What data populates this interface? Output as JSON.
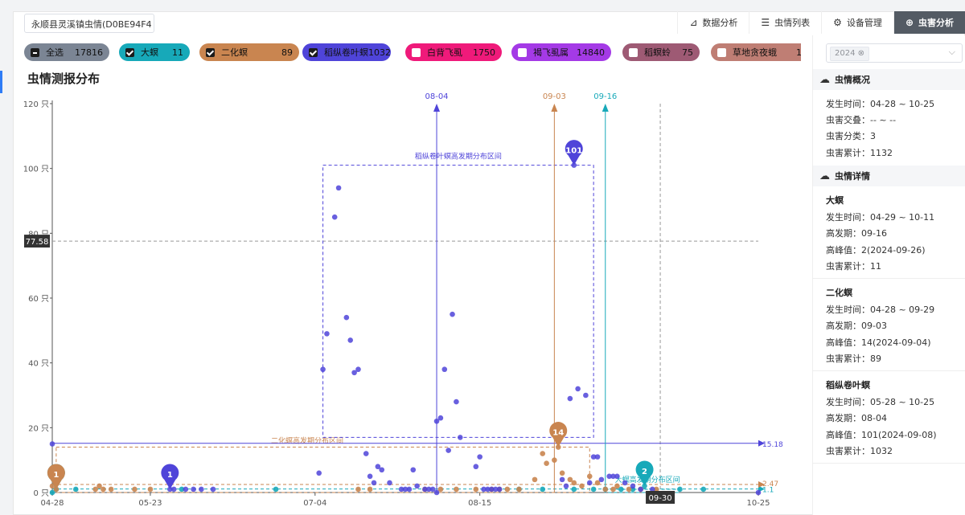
{
  "header": {
    "station": "永顺县灵溪镇虫情(D0BE94F4",
    "tabs": [
      {
        "label": "数据分析",
        "icon": "bar-chart-icon",
        "glyph": "⊿"
      },
      {
        "label": "虫情列表",
        "icon": "list-icon",
        "glyph": "☰"
      },
      {
        "label": "设备管理",
        "icon": "gear-icon",
        "glyph": "⚙"
      },
      {
        "label": "虫害分析",
        "icon": "magnifier-icon",
        "glyph": "⊕",
        "active": true
      }
    ]
  },
  "filters": [
    {
      "name": "全选",
      "count": "17816",
      "color": "#7b8594",
      "checked": true
    },
    {
      "name": "大螟",
      "count": "11",
      "color": "#17a9b9",
      "checked": true
    },
    {
      "name": "二化螟",
      "count": "89",
      "color": "#c98550",
      "checked": true
    },
    {
      "name": "稻纵卷叶螟",
      "count": "1032",
      "color": "#4f44d9",
      "checked": true
    },
    {
      "name": "白背飞虱",
      "count": "1750",
      "color": "#ef1a7a",
      "checked": false
    },
    {
      "name": "褐飞虱属",
      "count": "14840",
      "color": "#a43ae6",
      "checked": false
    },
    {
      "name": "稻螟蛉",
      "count": "75",
      "color": "#9e5a74",
      "checked": false
    },
    {
      "name": "草地贪夜蛾",
      "count": "13",
      "color": "#bf7e74",
      "checked": false
    }
  ],
  "chart_title": "虫情测报分布",
  "chart_data": {
    "type": "scatter",
    "x_type": "date",
    "x_ticks": [
      "04-28",
      "05-23",
      "07-04",
      "08-15",
      "09-30",
      "10-25"
    ],
    "x_domain": [
      "04-28",
      "10-25"
    ],
    "y_ticks": [
      "0 只",
      "20 只",
      "40 只",
      "60 只",
      "80 只",
      "100 只",
      "120 只"
    ],
    "ylim": [
      0,
      120
    ],
    "y_unit": "只",
    "crosshair": {
      "y_label": "77.58",
      "x_label": "09-30"
    },
    "series": [
      {
        "name": "大螟",
        "color": "#17a9b9",
        "points": [
          [
            "04-28",
            0
          ],
          [
            "04-29",
            1
          ],
          [
            "05-04",
            1
          ],
          [
            "05-31",
            1
          ],
          [
            "06-24",
            1
          ],
          [
            "08-25",
            1
          ],
          [
            "08-31",
            1
          ],
          [
            "09-08",
            1
          ],
          [
            "09-13",
            1
          ],
          [
            "09-16",
            1
          ],
          [
            "09-20",
            1
          ],
          [
            "09-23",
            1
          ],
          [
            "09-26",
            2
          ],
          [
            "10-05",
            1
          ],
          [
            "10-11",
            1
          ]
        ],
        "peak": {
          "x": "04-29",
          "value": 1
        },
        "extra_peak": {
          "x": "09-26",
          "value": 2
        },
        "high_period": "09-16",
        "avg": "1.1",
        "band": {
          "from": "09-16",
          "to": "10-05",
          "label": "大螟高发期分布区间"
        }
      },
      {
        "name": "二化螟",
        "color": "#c98550",
        "points": [
          [
            "04-28",
            2
          ],
          [
            "04-29",
            1
          ],
          [
            "05-09",
            1
          ],
          [
            "05-10",
            2
          ],
          [
            "05-11",
            1
          ],
          [
            "05-13",
            1
          ],
          [
            "05-19",
            1
          ],
          [
            "05-23",
            1
          ],
          [
            "07-15",
            1
          ],
          [
            "07-18",
            1
          ],
          [
            "08-01",
            1
          ],
          [
            "08-05",
            1
          ],
          [
            "08-09",
            1
          ],
          [
            "08-14",
            1
          ],
          [
            "08-18",
            1
          ],
          [
            "08-20",
            1
          ],
          [
            "08-22",
            1
          ],
          [
            "08-25",
            1
          ],
          [
            "08-29",
            4
          ],
          [
            "08-31",
            12
          ],
          [
            "09-01",
            9
          ],
          [
            "09-03",
            10
          ],
          [
            "09-04",
            14
          ],
          [
            "09-05",
            6
          ],
          [
            "09-07",
            4
          ],
          [
            "09-08",
            3
          ],
          [
            "09-10",
            2
          ],
          [
            "09-12",
            5
          ],
          [
            "09-14",
            3
          ],
          [
            "09-16",
            1
          ],
          [
            "09-18",
            1
          ],
          [
            "09-19",
            2
          ],
          [
            "09-22",
            1
          ],
          [
            "09-25",
            1
          ],
          [
            "09-29",
            1
          ]
        ],
        "peak": {
          "x": "09-04",
          "value": 14
        },
        "high_period": "09-03",
        "avg": "2.47",
        "band": {
          "from": "04-29",
          "to": "09-12",
          "label": "二化螟高发期分布区间"
        }
      },
      {
        "name": "稻纵卷叶螟",
        "color": "#4f44d9",
        "points": [
          [
            "04-28",
            15
          ],
          [
            "05-28",
            1
          ],
          [
            "05-29",
            1
          ],
          [
            "06-01",
            1
          ],
          [
            "06-03",
            1
          ],
          [
            "06-05",
            1
          ],
          [
            "06-08",
            1
          ],
          [
            "07-05",
            6
          ],
          [
            "07-06",
            38
          ],
          [
            "07-07",
            49
          ],
          [
            "07-09",
            85
          ],
          [
            "07-10",
            94
          ],
          [
            "07-12",
            54
          ],
          [
            "07-13",
            47
          ],
          [
            "07-14",
            37
          ],
          [
            "07-15",
            38
          ],
          [
            "07-17",
            12
          ],
          [
            "07-18",
            5
          ],
          [
            "07-19",
            3
          ],
          [
            "07-20",
            8
          ],
          [
            "07-21",
            7
          ],
          [
            "07-23",
            3
          ],
          [
            "07-26",
            1
          ],
          [
            "07-27",
            1
          ],
          [
            "07-28",
            1
          ],
          [
            "07-29",
            7
          ],
          [
            "07-30",
            2
          ],
          [
            "08-01",
            1
          ],
          [
            "08-02",
            1
          ],
          [
            "08-03",
            1
          ],
          [
            "08-04",
            0
          ],
          [
            "08-04",
            22
          ],
          [
            "08-05",
            23
          ],
          [
            "08-06",
            38
          ],
          [
            "08-07",
            13
          ],
          [
            "08-08",
            55
          ],
          [
            "08-09",
            28
          ],
          [
            "08-10",
            17
          ],
          [
            "08-14",
            8
          ],
          [
            "08-15",
            11
          ],
          [
            "08-16",
            1
          ],
          [
            "08-17",
            1
          ],
          [
            "08-18",
            1
          ],
          [
            "08-19",
            1
          ],
          [
            "08-20",
            1
          ],
          [
            "09-05",
            4
          ],
          [
            "09-06",
            2
          ],
          [
            "09-07",
            29
          ],
          [
            "09-09",
            32
          ],
          [
            "09-08",
            101
          ],
          [
            "09-11",
            30
          ],
          [
            "09-12",
            3
          ],
          [
            "09-13",
            11
          ],
          [
            "09-14",
            11
          ],
          [
            "09-15",
            4
          ],
          [
            "09-17",
            5
          ],
          [
            "09-18",
            5
          ],
          [
            "09-19",
            5
          ],
          [
            "09-21",
            3
          ],
          [
            "09-23",
            2
          ],
          [
            "09-25",
            1
          ],
          [
            "09-28",
            1
          ],
          [
            "10-25",
            0
          ]
        ],
        "peak": {
          "x": "09-08",
          "value": 101
        },
        "first_peak": {
          "x": "05-28",
          "value": 1
        },
        "high_period": "08-04",
        "avg": "15.18",
        "band": {
          "from": "07-06",
          "to": "09-13",
          "top": 101,
          "bottom": 17,
          "label": "稻纵卷叶螟高发期分布区间"
        }
      }
    ]
  },
  "sidebar": {
    "year": "2024",
    "overview": {
      "title": "虫情概况",
      "lines": [
        "发生时间：04-28 ~ 10-25",
        "虫害交叠：-- ~ --",
        "虫害分类：3",
        "虫害累计：1132"
      ]
    },
    "details_title": "虫情详情",
    "details": [
      {
        "name": "大螟",
        "lines": [
          "发生时间：04-29 ~ 10-11",
          "高发期：09-16",
          "高峰值：2(2024-09-26)",
          "虫害累计：11"
        ]
      },
      {
        "name": "二化螟",
        "lines": [
          "发生时间：04-28 ~ 09-29",
          "高发期：09-03",
          "高峰值：14(2024-09-04)",
          "虫害累计：89"
        ]
      },
      {
        "name": "稻纵卷叶螟",
        "lines": [
          "发生时间：05-28 ~ 10-25",
          "高发期：08-04",
          "高峰值：101(2024-09-08)",
          "虫害累计：1032"
        ]
      }
    ]
  }
}
